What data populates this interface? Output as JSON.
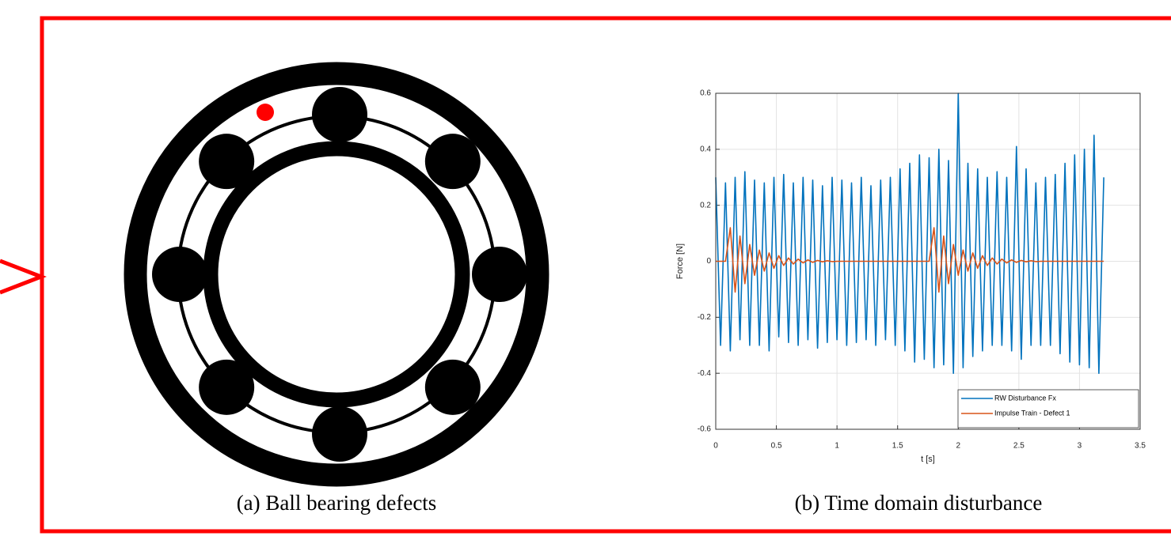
{
  "figure": {
    "captions": [
      "(a) Ball bearing defects",
      "(b) Time domain disturbance"
    ]
  },
  "chart_data": {
    "type": "line",
    "xlabel": "t [s]",
    "ylabel": "Force [N]",
    "xlim": [
      0,
      3.5
    ],
    "ylim": [
      -0.6,
      0.6
    ],
    "xticks": [
      0,
      0.5,
      1,
      1.5,
      2,
      2.5,
      3,
      3.5
    ],
    "yticks": [
      -0.6,
      -0.4,
      -0.2,
      0,
      0.2,
      0.4,
      0.6
    ],
    "grid": true,
    "legend": "lower right",
    "x": [
      0,
      0.04,
      0.08,
      0.12,
      0.16,
      0.2,
      0.24,
      0.28,
      0.32,
      0.36,
      0.4,
      0.44,
      0.48,
      0.52,
      0.56,
      0.6,
      0.64,
      0.68,
      0.72,
      0.76,
      0.8,
      0.84,
      0.88,
      0.92,
      0.96,
      1,
      1.04,
      1.08,
      1.12,
      1.16,
      1.2,
      1.24,
      1.28,
      1.32,
      1.36,
      1.4,
      1.44,
      1.48,
      1.52,
      1.56,
      1.6,
      1.64,
      1.68,
      1.72,
      1.76,
      1.8,
      1.84,
      1.88,
      1.92,
      1.96,
      2,
      2.04,
      2.08,
      2.12,
      2.16,
      2.2,
      2.24,
      2.28,
      2.32,
      2.36,
      2.4,
      2.44,
      2.48,
      2.52,
      2.56,
      2.6,
      2.64,
      2.68,
      2.72,
      2.76,
      2.8,
      2.84,
      2.88,
      2.92,
      2.96,
      3,
      3.04,
      3.08,
      3.12,
      3.16,
      3.2
    ],
    "series": [
      {
        "name": "RW Disturbance Fx",
        "color": "#0072bd",
        "values": [
          0.3,
          -0.3,
          0.28,
          -0.32,
          0.3,
          -0.28,
          0.32,
          -0.3,
          0.29,
          -0.3,
          0.28,
          -0.32,
          0.3,
          -0.27,
          0.31,
          -0.29,
          0.28,
          -0.3,
          0.3,
          -0.28,
          0.29,
          -0.31,
          0.27,
          -0.29,
          0.3,
          -0.28,
          0.29,
          -0.3,
          0.28,
          -0.29,
          0.3,
          -0.28,
          0.27,
          -0.3,
          0.29,
          -0.28,
          0.3,
          -0.3,
          0.33,
          -0.32,
          0.35,
          -0.36,
          0.38,
          -0.35,
          0.37,
          -0.38,
          0.4,
          -0.37,
          0.36,
          -0.4,
          0.6,
          -0.38,
          0.35,
          -0.34,
          0.33,
          -0.32,
          0.3,
          -0.3,
          0.32,
          -0.3,
          0.3,
          -0.32,
          0.41,
          -0.35,
          0.33,
          -0.3,
          0.28,
          -0.3,
          0.3,
          -0.3,
          0.31,
          -0.33,
          0.35,
          -0.36,
          0.38,
          -0.37,
          0.4,
          -0.38,
          0.45,
          -0.4,
          0.3
        ]
      },
      {
        "name": "Impulse Train - Defect 1",
        "color": "#d95319",
        "values": [
          0,
          0,
          0,
          0.12,
          -0.11,
          0.09,
          -0.08,
          0.06,
          -0.05,
          0.04,
          -0.035,
          0.03,
          -0.025,
          0.02,
          -0.015,
          0.012,
          -0.01,
          0.008,
          -0.006,
          0.005,
          -0.004,
          0.003,
          -0.002,
          0.002,
          -0.001,
          0,
          0,
          0,
          0,
          0,
          0,
          0,
          0,
          0,
          0,
          0,
          0,
          0,
          0,
          0,
          0,
          0,
          0,
          0,
          0,
          0.12,
          -0.11,
          0.09,
          -0.08,
          0.06,
          -0.05,
          0.04,
          -0.035,
          0.03,
          -0.025,
          0.02,
          -0.015,
          0.012,
          -0.01,
          0.008,
          -0.006,
          0.005,
          -0.004,
          0.003,
          -0.002,
          0.002,
          -0.001,
          0,
          0,
          0,
          0,
          0,
          0,
          0,
          0,
          0,
          0,
          0,
          0,
          0,
          0
        ]
      }
    ]
  }
}
